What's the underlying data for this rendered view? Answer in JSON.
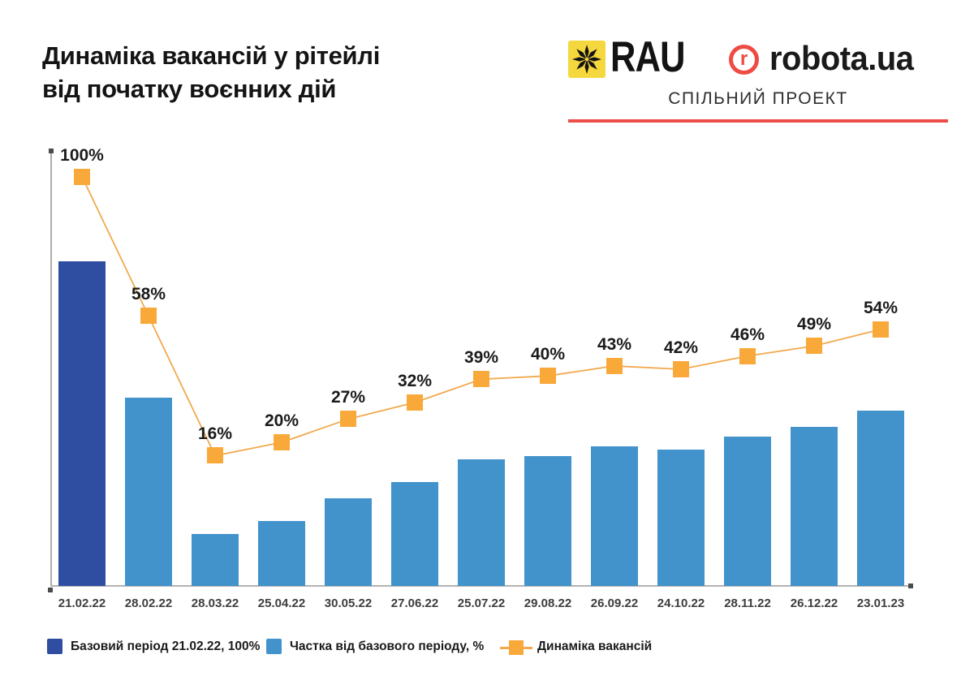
{
  "header": {
    "title_line1": "Динаміка вакансій у рітейлі",
    "title_line2": "від початку воєнних дій",
    "partners": {
      "rau_text": "RAU",
      "robota_r": "r",
      "robota_text": "robota.ua",
      "subtitle": "СПІЛЬНИЙ ПРОЕКТ"
    }
  },
  "colors": {
    "base_bar": "#2F4EA1",
    "bar": "#4293CC",
    "marker": "#F8A93A",
    "line": "#F2A94E",
    "rau_yellow": "#F5D73E",
    "brand_red": "#EE4B45",
    "divider_red": "#EC4D49",
    "axis": "#ABABAB",
    "axis_cap": "#4C4C4C",
    "title_text": "#141414",
    "tick_text": "#3D3D3D",
    "value_label_text": "#1B1B1B"
  },
  "chart_data": {
    "type": "bar+line",
    "title": "Динаміка вакансій у рітейлі від початку воєнних дій",
    "categories": [
      "21.02.22",
      "28.02.22",
      "28.03.22",
      "25.04.22",
      "30.05.22",
      "27.06.22",
      "25.07.22",
      "29.08.22",
      "26.09.22",
      "24.10.22",
      "28.11.22",
      "26.12.22",
      "23.01.23"
    ],
    "series": [
      {
        "name": "Частка від базового періоду, %",
        "type": "bar",
        "values": [
          100,
          58,
          16,
          20,
          27,
          32,
          39,
          40,
          43,
          42,
          46,
          49,
          54
        ],
        "base_period": {
          "index": 0,
          "label": "Базовий період 21.02.22, 100%"
        }
      },
      {
        "name": "Динаміка вакансій",
        "type": "line",
        "marker": "square",
        "values": [
          100,
          58,
          16,
          20,
          27,
          32,
          39,
          40,
          43,
          42,
          46,
          49,
          54
        ],
        "point_labels": [
          "100%",
          "58%",
          "16%",
          "20%",
          "27%",
          "32%",
          "39%",
          "40%",
          "43%",
          "42%",
          "46%",
          "49%",
          "54%"
        ]
      }
    ],
    "ylim": [
      0,
      100
    ],
    "grid": false,
    "y_axis_ticks": [],
    "legend_position": "bottom"
  },
  "legend": {
    "items": [
      {
        "label": "Базовий період 21.02.22, 100%",
        "swatch": "square",
        "color_key": "base_bar"
      },
      {
        "label": "Частка від базового періоду, %",
        "swatch": "square",
        "color_key": "bar"
      },
      {
        "label": "Динаміка вакансій",
        "swatch": "line-marker",
        "color_key": "marker"
      }
    ]
  }
}
